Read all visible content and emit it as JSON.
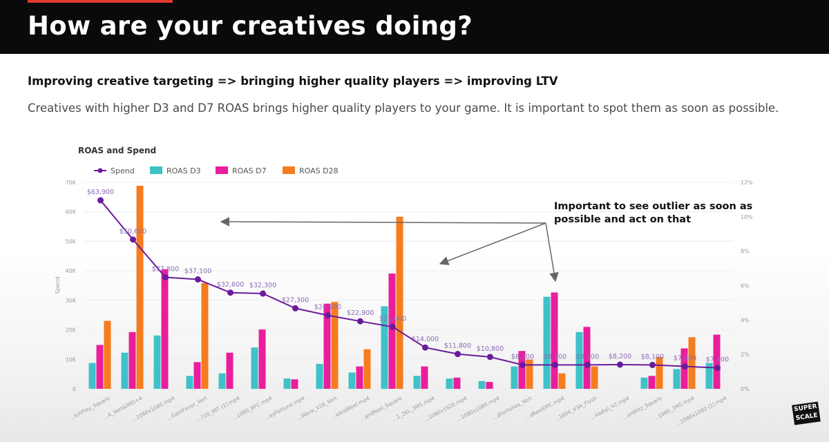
{
  "slide": {
    "title": "How are your creatives doing?",
    "subtitle": "Improving creative targeting => bringing higher quality players => improving LTV",
    "description": "Creatives with higher D3 and D7 ROAS brings higher quality players to your game. It is important to spot them as soon as possible.",
    "callout": "Important to see outlier as soon as possible and act on that",
    "logo_text": "SUPER SCALE",
    "accent_color": "#e03a2f"
  },
  "chart_data": {
    "type": "bar",
    "title": "ROAS and Spend",
    "ylabel": "Spend",
    "y_left_ticks": [
      "0",
      "10K",
      "20K",
      "30K",
      "40K",
      "50K",
      "60K",
      "70K"
    ],
    "y_left_lim": [
      0,
      70000
    ],
    "y_right_ticks": [
      "0%",
      "2%",
      "4%",
      "6%",
      "8%",
      "10%",
      "12%"
    ],
    "y_right_lim": [
      0,
      12
    ],
    "legend": [
      "Spend",
      "ROAS D3",
      "ROAS D7",
      "ROAS D28"
    ],
    "colors": {
      "spend": "#6a1b9a",
      "d3": "#3fc1c9",
      "d7": "#e91e9c",
      "d28": "#f57c1f"
    },
    "categories": [
      "...tchPlay_Square",
      "...A_Vert&IMG+4",
      "...1080x1080.mp4",
      "...GamFever_Vert",
      "...720_INT (1).mp4",
      "...1080_BFC.mp4",
      "...eyFortune.mp4",
      "...Wave_V16_Vert",
      "...kAndReel.mp4",
      "...andReel_Square",
      "...1_26L_3M5.mp4",
      "...1080x1920.mp4",
      "...1080x1080.mp4",
      "...dFortunes_Vert",
      "...dReelOPC.mp4",
      "...1804_V3A_Flysh",
      "...kodial_V2.mp4",
      "...onBlitz_Square",
      "...1080_3M5.mp4",
      "...1080x1080 (1).mp4"
    ],
    "spend": [
      63900,
      50600,
      37800,
      37100,
      32600,
      32300,
      27300,
      24900,
      22900,
      21000,
      14000,
      11800,
      10800,
      8100,
      8100,
      8100,
      8200,
      8100,
      7600,
      7100
    ],
    "spend_labels": [
      "$63,900",
      "$50,600",
      "$37,800",
      "$37,100",
      "$32,600",
      "$32,300",
      "$27,300",
      "$24,900",
      "$22,900",
      "$21,000",
      "$14,000",
      "$11,800",
      "$10,800",
      "$8,100",
      "$8,100",
      "$8,100",
      "$8,200",
      "$8,100",
      "$7,600",
      "$7,100"
    ],
    "series": [
      {
        "name": "ROAS D3",
        "values": [
          1.5,
          2.1,
          3.1,
          0.75,
          0.9,
          2.4,
          0.6,
          1.45,
          0.95,
          4.8,
          0.75,
          0.6,
          0.45,
          1.3,
          5.35,
          3.3,
          0,
          0.65,
          1.15,
          1.5
        ]
      },
      {
        "name": "ROAS D7",
        "values": [
          2.55,
          3.3,
          6.95,
          1.55,
          2.1,
          3.45,
          0.55,
          4.95,
          1.3,
          6.7,
          1.3,
          0.65,
          0.4,
          2.2,
          5.6,
          3.6,
          0,
          0.75,
          2.35,
          3.15
        ]
      },
      {
        "name": "ROAS D28",
        "values": [
          3.95,
          11.8,
          0,
          6.15,
          0,
          0,
          0,
          5.05,
          2.3,
          10.0,
          0,
          0,
          0,
          1.7,
          0.9,
          1.3,
          0,
          1.85,
          3.0,
          0
        ]
      }
    ]
  }
}
